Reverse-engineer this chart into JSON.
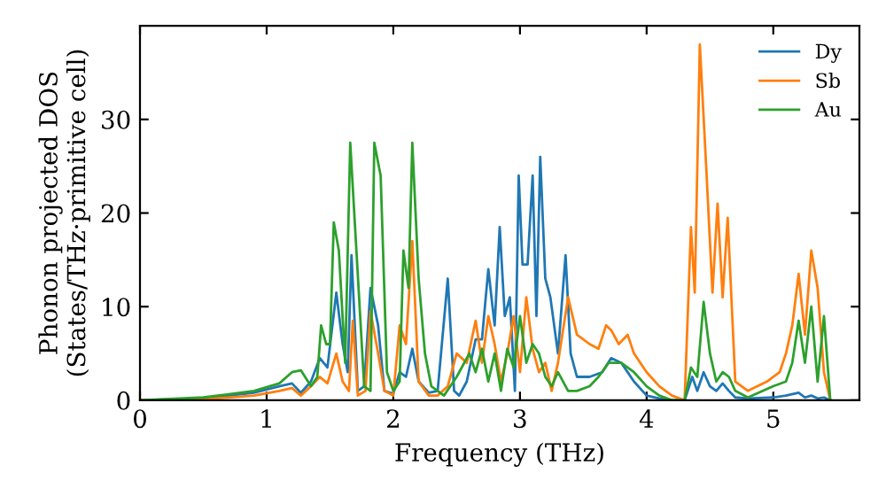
{
  "chart_data": {
    "type": "line",
    "xlabel": "Frequency (THz)",
    "ylabel": "Phonon projected DOS\n(States/THz·primitive cell)",
    "xlim": [
      0,
      5.68
    ],
    "ylim": [
      0,
      40
    ],
    "xticks": [
      0,
      1,
      2,
      3,
      4,
      5
    ],
    "yticks": [
      0,
      10,
      20,
      30
    ],
    "legend": "top right",
    "grid": false,
    "marker": "none",
    "line_style": "solid",
    "series": [
      {
        "name": "Dy",
        "color": "#1f77b4",
        "x": [
          0,
          0.5,
          0.9,
          1.1,
          1.2,
          1.27,
          1.35,
          1.42,
          1.48,
          1.55,
          1.6,
          1.64,
          1.67,
          1.72,
          1.77,
          1.82,
          1.88,
          1.93,
          2.0,
          2.05,
          2.1,
          2.15,
          2.2,
          2.28,
          2.35,
          2.43,
          2.48,
          2.52,
          2.58,
          2.65,
          2.7,
          2.75,
          2.8,
          2.84,
          2.88,
          2.92,
          2.96,
          2.99,
          3.02,
          3.06,
          3.1,
          3.13,
          3.16,
          3.2,
          3.24,
          3.3,
          3.36,
          3.4,
          3.45,
          3.55,
          3.65,
          3.72,
          3.8,
          3.9,
          4.0,
          4.1,
          4.2,
          4.3,
          4.36,
          4.4,
          4.45,
          4.5,
          4.55,
          4.6,
          4.65,
          4.7,
          4.8,
          5.0,
          5.1,
          5.2,
          5.25,
          5.3,
          5.35,
          5.4,
          5.45
        ],
        "values": [
          0,
          0.2,
          0.8,
          1.5,
          1.8,
          0.8,
          2,
          4.5,
          3.5,
          11.5,
          6,
          3,
          15.5,
          1,
          1.5,
          12,
          8,
          1,
          0.7,
          3,
          2.5,
          5.5,
          2,
          0.8,
          1,
          13,
          1,
          0.5,
          2,
          6.5,
          6.5,
          14,
          8,
          18.5,
          9,
          11,
          1,
          24,
          14.5,
          14.5,
          24,
          9,
          26,
          13,
          11,
          5,
          15.5,
          5,
          2.5,
          2.5,
          3,
          4.5,
          4,
          2,
          0.5,
          0.2,
          0,
          0,
          2.5,
          1,
          3,
          1.5,
          1,
          1.8,
          1,
          0.3,
          0.2,
          0.3,
          0.5,
          0.8,
          0.3,
          0.5,
          0.2,
          0.3,
          0
        ]
      },
      {
        "name": "Sb",
        "color": "#ff7f0e",
        "x": [
          0,
          0.5,
          0.9,
          1.1,
          1.2,
          1.27,
          1.35,
          1.42,
          1.48,
          1.55,
          1.6,
          1.65,
          1.68,
          1.72,
          1.78,
          1.82,
          1.88,
          1.93,
          2.0,
          2.05,
          2.1,
          2.15,
          2.2,
          2.28,
          2.35,
          2.43,
          2.5,
          2.58,
          2.65,
          2.7,
          2.75,
          2.8,
          2.85,
          2.9,
          2.95,
          3.0,
          3.05,
          3.1,
          3.15,
          3.2,
          3.25,
          3.3,
          3.38,
          3.45,
          3.55,
          3.62,
          3.68,
          3.72,
          3.78,
          3.85,
          3.9,
          4.0,
          4.1,
          4.2,
          4.3,
          4.35,
          4.38,
          4.42,
          4.47,
          4.52,
          4.56,
          4.6,
          4.64,
          4.7,
          4.8,
          4.95,
          5.05,
          5.1,
          5.15,
          5.2,
          5.25,
          5.3,
          5.35,
          5.4,
          5.45
        ],
        "values": [
          0,
          0.1,
          0.5,
          1.0,
          1.3,
          0.5,
          1.5,
          2.5,
          1.8,
          5,
          2,
          1,
          8.5,
          0.5,
          1,
          9.5,
          5,
          1,
          0.5,
          8,
          6,
          17,
          2,
          0.5,
          0.5,
          1.5,
          5,
          4,
          8.5,
          4,
          9,
          6,
          2,
          5,
          9,
          3,
          11,
          5.5,
          3,
          4,
          1,
          4,
          11,
          7,
          6,
          5.5,
          8,
          7.5,
          6,
          7,
          5,
          3,
          1.5,
          0.5,
          0,
          18.5,
          11.5,
          38,
          25,
          11.5,
          21,
          11,
          19.5,
          2,
          1,
          2,
          3,
          5,
          8,
          13.5,
          7,
          16,
          12,
          3,
          0
        ]
      },
      {
        "name": "Au",
        "color": "#2ca02c",
        "x": [
          0,
          0.5,
          0.9,
          1.1,
          1.2,
          1.27,
          1.35,
          1.4,
          1.43,
          1.47,
          1.5,
          1.53,
          1.57,
          1.62,
          1.66,
          1.77,
          1.82,
          1.85,
          1.9,
          1.95,
          2.0,
          2.05,
          2.08,
          2.12,
          2.15,
          2.2,
          2.25,
          2.3,
          2.4,
          2.5,
          2.6,
          2.65,
          2.7,
          2.75,
          2.8,
          2.85,
          2.9,
          2.95,
          3.0,
          3.05,
          3.1,
          3.15,
          3.2,
          3.25,
          3.3,
          3.38,
          3.45,
          3.55,
          3.62,
          3.7,
          3.8,
          3.9,
          4.0,
          4.1,
          4.2,
          4.3,
          4.35,
          4.4,
          4.45,
          4.5,
          4.55,
          4.6,
          4.65,
          4.7,
          4.8,
          5.0,
          5.1,
          5.15,
          5.2,
          5.25,
          5.3,
          5.35,
          5.4,
          5.45
        ],
        "values": [
          0,
          0.3,
          1.0,
          1.8,
          3,
          3.2,
          1.5,
          2.5,
          8,
          6,
          6,
          19,
          16,
          4,
          27.5,
          1.5,
          1,
          27.5,
          24,
          3,
          1,
          2,
          16,
          12,
          27.5,
          13,
          5,
          1.5,
          0.5,
          2.5,
          5,
          3,
          5.5,
          2,
          5,
          1,
          5.5,
          3.5,
          9,
          4,
          6,
          5,
          2.5,
          1.5,
          3,
          1,
          1,
          1.5,
          2.5,
          4,
          4,
          3,
          1.5,
          0.5,
          0,
          0,
          3.5,
          2.5,
          10.5,
          5,
          2,
          3,
          2.5,
          1,
          0.3,
          1.5,
          2,
          4,
          8.5,
          4,
          10,
          2,
          9,
          0
        ]
      }
    ]
  }
}
